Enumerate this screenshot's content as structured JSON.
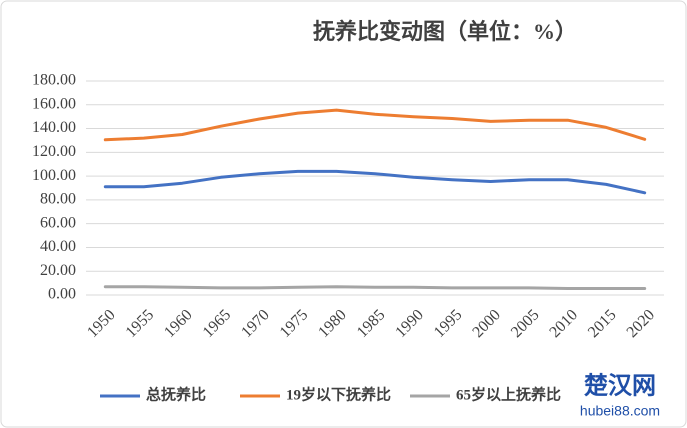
{
  "chart_data": {
    "type": "line",
    "title": "抚养比变动图（单位：%）",
    "categories": [
      "1950",
      "1955",
      "1960",
      "1965",
      "1970",
      "1975",
      "1980",
      "1985",
      "1990",
      "1995",
      "2000",
      "2005",
      "2010",
      "2015",
      "2020"
    ],
    "series": [
      {
        "name": "总抚养比",
        "color": "#4472c4",
        "values": [
          91,
          91,
          94,
          99,
          102,
          104,
          104,
          102,
          99,
          97,
          95.5,
          97,
          97,
          93,
          86
        ]
      },
      {
        "name": "19岁以下抚养比",
        "color": "#ed7d31",
        "values": [
          130.5,
          132,
          135,
          142,
          148,
          153,
          155.5,
          152,
          150,
          148.5,
          146,
          147,
          147,
          141,
          131
        ]
      },
      {
        "name": "65岁以上抚养比",
        "color": "#a5a5a5",
        "values": [
          7,
          7,
          6.5,
          6,
          6,
          6.5,
          7,
          6.5,
          6.5,
          6,
          6,
          6,
          5.5,
          5.5,
          5.5
        ]
      }
    ],
    "ylim": [
      0,
      180
    ],
    "yticks": [
      {
        "value": 0,
        "label": "0.00"
      },
      {
        "value": 20,
        "label": "20.00"
      },
      {
        "value": 40,
        "label": "40.00"
      },
      {
        "value": 60,
        "label": "60.00"
      },
      {
        "value": 80,
        "label": "80.00"
      },
      {
        "value": 100,
        "label": "100.00"
      },
      {
        "value": 120,
        "label": "120.00"
      },
      {
        "value": 140,
        "label": "140.00"
      },
      {
        "value": 160,
        "label": "160.00"
      },
      {
        "value": 180,
        "label": "180.00"
      }
    ],
    "grid": true,
    "legend": "bottom",
    "watermark": {
      "name": "楚汉网",
      "url": "hubei88.com"
    }
  }
}
